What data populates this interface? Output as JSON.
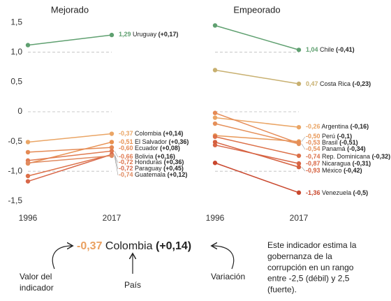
{
  "chart_data": [
    {
      "type": "slope",
      "title": "Mejorado",
      "categories": [
        "1996",
        "2017"
      ],
      "ylim": [
        -1.62,
        1.62
      ],
      "yticks": [
        {
          "value": 1.5,
          "label": "1,5"
        },
        {
          "value": 1.0,
          "label": "1,0"
        },
        {
          "value": 0.5,
          "label": "0,5"
        },
        0,
        {
          "value": -0.5,
          "label": "-0,5"
        },
        {
          "value": -1.0,
          "label": "-1,0"
        },
        {
          "value": -1.5,
          "label": "-1,5"
        }
      ],
      "gridlines": [
        1.0,
        0,
        -1.0
      ],
      "series": [
        {
          "name": "Uruguay",
          "color": "#5fa070",
          "values": [
            1.12,
            1.29
          ],
          "value_labels": [
            null,
            "1,29"
          ],
          "change": 0.17,
          "change_label": "(+0,17)"
        },
        {
          "name": "Colombia",
          "color": "#eaa565",
          "values": [
            -0.51,
            -0.37
          ],
          "value_labels": [
            null,
            "-0,37"
          ],
          "change": 0.14,
          "change_label": "(+0,14)"
        },
        {
          "name": "El Salvador",
          "color": "#e89050",
          "values": [
            -0.87,
            -0.51
          ],
          "value_labels": [
            null,
            "-0,51"
          ],
          "change": 0.36,
          "change_label": "(+0,36)"
        },
        {
          "name": "Ecuador",
          "color": "#e48a55",
          "values": [
            -0.68,
            -0.6
          ],
          "value_labels": [
            null,
            "-0,60"
          ],
          "change": 0.08,
          "change_label": "(+0,08)"
        },
        {
          "name": "Bolivia",
          "color": "#e07a50",
          "values": [
            -0.82,
            -0.66
          ],
          "value_labels": [
            null,
            "-0,66"
          ],
          "change": 0.16,
          "change_label": "(+0,16)"
        },
        {
          "name": "Honduras",
          "color": "#dd7048",
          "values": [
            -1.08,
            -0.72
          ],
          "value_labels": [
            null,
            "-0,72"
          ],
          "change": 0.36,
          "change_label": "(+0,36)"
        },
        {
          "name": "Paraguay",
          "color": "#d8684a",
          "values": [
            -1.17,
            -0.72
          ],
          "value_labels": [
            null,
            "-0,72"
          ],
          "change": 0.45,
          "change_label": "(+0,45)"
        },
        {
          "name": "Guatemala",
          "color": "#e08a60",
          "values": [
            -0.86,
            -0.74
          ],
          "value_labels": [
            null,
            "-0,74"
          ],
          "change": 0.12,
          "change_label": "(+0,12)"
        }
      ]
    },
    {
      "type": "slope",
      "title": "Empeorado",
      "categories": [
        "1996",
        "2017"
      ],
      "ylim": [
        -1.62,
        1.62
      ],
      "gridlines": [
        1.0,
        0,
        -1.0
      ],
      "series": [
        {
          "name": "Chile",
          "color": "#5fa070",
          "values": [
            1.45,
            1.04
          ],
          "value_labels": [
            null,
            "1,04"
          ],
          "change": -0.41,
          "change_label": "(-0,41)"
        },
        {
          "name": "Costa Rica",
          "color": "#c8b070",
          "values": [
            0.7,
            0.47
          ],
          "value_labels": [
            null,
            "0,47"
          ],
          "change": -0.23,
          "change_label": "(-0,23)"
        },
        {
          "name": "Argentina",
          "color": "#eaa565",
          "values": [
            -0.1,
            -0.26
          ],
          "value_labels": [
            null,
            "-0,26"
          ],
          "change": -0.16,
          "change_label": "(-0,16)"
        },
        {
          "name": "Perú",
          "color": "#e89858",
          "values": [
            -0.4,
            -0.5
          ],
          "value_labels": [
            null,
            "-0,50"
          ],
          "change": -0.1,
          "change_label": "(-0,1)"
        },
        {
          "name": "Brasil",
          "color": "#e58a55",
          "values": [
            -0.02,
            -0.53
          ],
          "value_labels": [
            null,
            "-0,53"
          ],
          "change": -0.51,
          "change_label": "(-0,51)"
        },
        {
          "name": "Panamá",
          "color": "#e5905a",
          "values": [
            -0.2,
            -0.54
          ],
          "value_labels": [
            null,
            "-0,54"
          ],
          "change": -0.34,
          "change_label": "(-0,34)"
        },
        {
          "name": "Rep. Dominicana",
          "color": "#dc7048",
          "values": [
            -0.42,
            -0.74
          ],
          "value_labels": [
            null,
            "-0,74"
          ],
          "change": -0.32,
          "change_label": "(-0,32)"
        },
        {
          "name": "Nicaragua",
          "color": "#d86545",
          "values": [
            -0.56,
            -0.87
          ],
          "value_labels": [
            null,
            "-0,87"
          ],
          "change": -0.31,
          "change_label": "(-0,31)"
        },
        {
          "name": "México",
          "color": "#d5603f",
          "values": [
            -0.51,
            -0.93
          ],
          "value_labels": [
            null,
            "-0,93"
          ],
          "change": -0.42,
          "change_label": "(-0,42)"
        },
        {
          "name": "Venezuela",
          "color": "#c9482e",
          "values": [
            -0.86,
            -1.36
          ],
          "value_labels": [
            null,
            "-1,36"
          ],
          "change": -0.5,
          "change_label": "(-0,5)"
        }
      ]
    }
  ],
  "legend_example": {
    "value_label": "-0,37",
    "name": "Colombia",
    "change_label": "(+0,14)",
    "value_caption_lines": [
      "Valor del",
      "indicador"
    ],
    "name_caption": "País",
    "change_caption": "Variación"
  },
  "note_lines": [
    "Este indicador estima la",
    "gobernanza de la",
    "corrupción en un rango",
    "entre -2,5 (débil) y 2,5",
    "(fuerte)."
  ]
}
